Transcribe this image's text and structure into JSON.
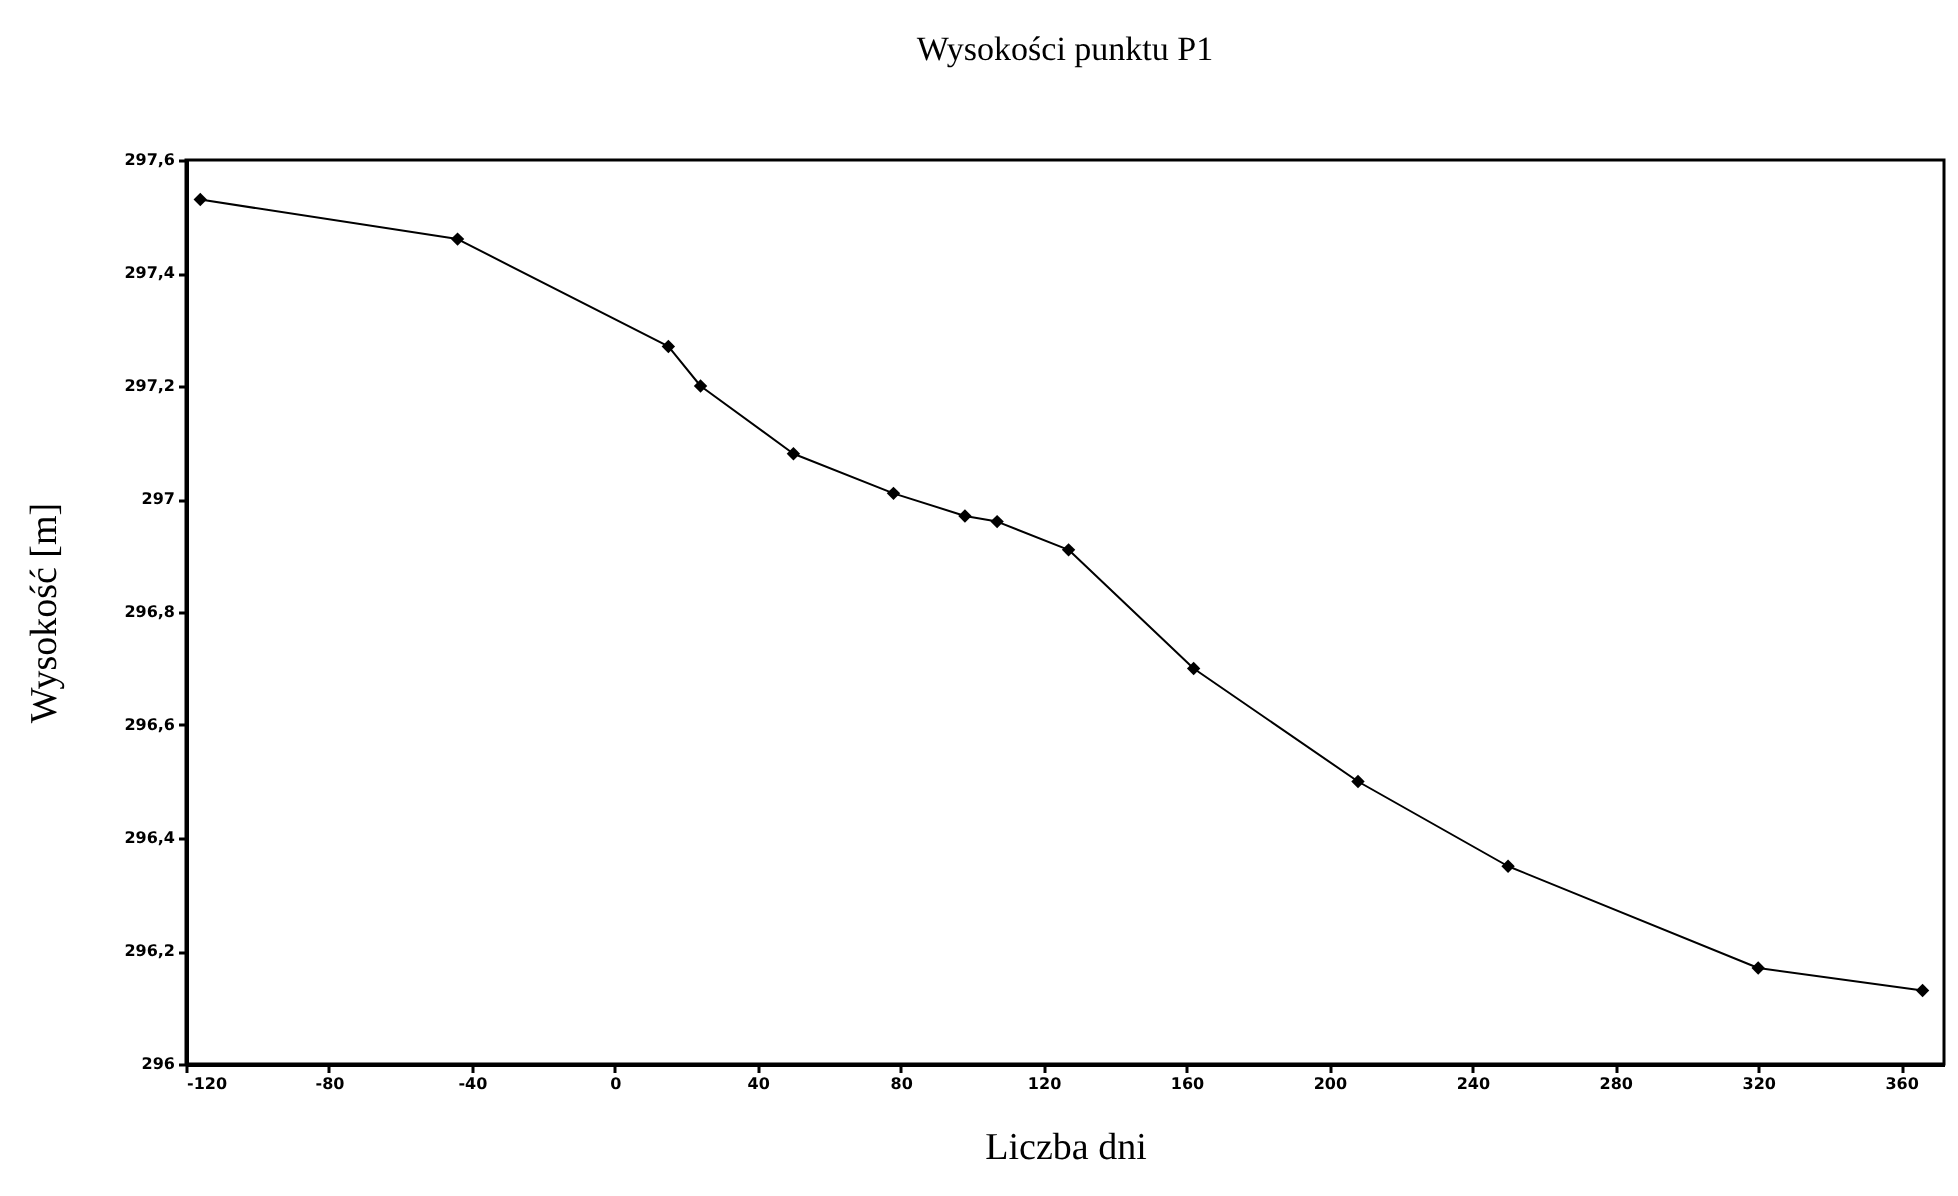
{
  "chart_data": {
    "type": "line",
    "title": "Wysokości punktu P1",
    "xlabel": "Liczba dni",
    "ylabel": "Wysokość [m]",
    "x": [
      -116,
      -44,
      15,
      24,
      50,
      78,
      98,
      107,
      127,
      162,
      208,
      250,
      320,
      366
    ],
    "series": [
      {
        "color": "#000000",
        "values": [
          297.53,
          297.46,
          297.27,
          297.2,
          297.08,
          297.01,
          296.97,
          296.96,
          296.91,
          296.7,
          296.5,
          296.35,
          296.17,
          296.13
        ]
      }
    ],
    "xlim": [
      -120,
      372
    ],
    "xticks": [
      -120,
      -80,
      -40,
      0,
      40,
      80,
      120,
      160,
      200,
      240,
      280,
      320,
      360
    ],
    "ylim": [
      296,
      297.6
    ],
    "yticks": [
      296,
      {
        "value": 296.2,
        "label": "296,2"
      },
      {
        "value": 296.4,
        "label": "296,4"
      },
      {
        "value": 296.6,
        "label": "296,6"
      },
      {
        "value": 296.8,
        "label": "296,8"
      },
      297,
      {
        "value": 297.2,
        "label": "297,2"
      },
      {
        "value": 297.4,
        "label": "297,4"
      },
      {
        "value": 297.6,
        "label": "297,6"
      }
    ],
    "marker": "diamond",
    "line_style": "solid",
    "grid": false,
    "legend": false
  }
}
